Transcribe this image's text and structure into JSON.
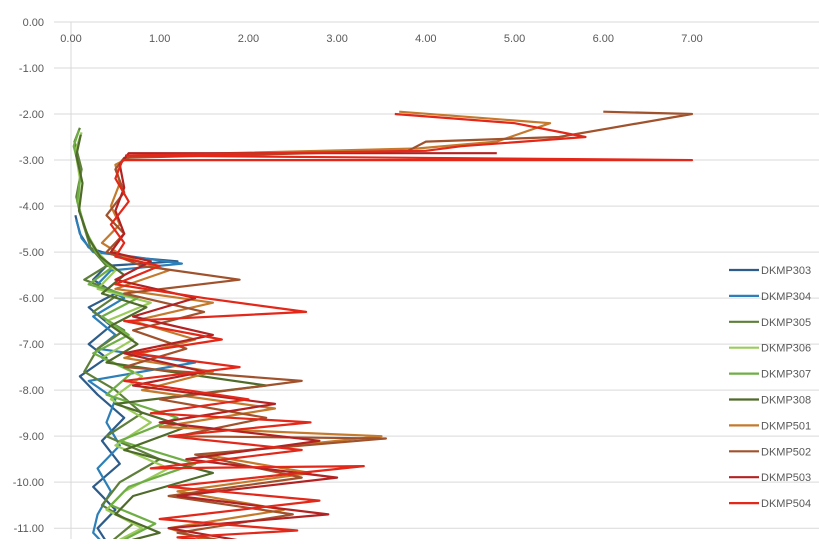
{
  "chart_data": {
    "type": "line",
    "title": "",
    "xlabel": "",
    "ylabel": "",
    "xlim": [
      0,
      7
    ],
    "ylim": [
      -11.3,
      0
    ],
    "x_ticks": [
      "0.00",
      "1.00",
      "2.00",
      "3.00",
      "4.00",
      "5.00",
      "6.00",
      "7.00"
    ],
    "y_ticks": [
      "0.00",
      "-1.00",
      "-2.00",
      "-3.00",
      "-4.00",
      "-5.00",
      "-6.00",
      "-7.00",
      "-8.00",
      "-9.00",
      "-10.00",
      "-11.00"
    ],
    "x_axis_position": "top",
    "gridlines": "horizontal",
    "legend_position": "right",
    "series": [
      {
        "name": "DKMP303",
        "color": "#2E5C8A",
        "points": [
          [
            0.05,
            -4.2
          ],
          [
            0.1,
            -4.6
          ],
          [
            0.2,
            -4.9
          ],
          [
            0.35,
            -5.0
          ],
          [
            0.6,
            -5.1
          ],
          [
            1.2,
            -5.2
          ],
          [
            0.4,
            -5.3
          ],
          [
            0.25,
            -5.6
          ],
          [
            0.5,
            -5.9
          ],
          [
            0.2,
            -6.2
          ],
          [
            0.45,
            -6.6
          ],
          [
            0.2,
            -7.0
          ],
          [
            0.4,
            -7.3
          ],
          [
            0.1,
            -7.7
          ],
          [
            0.3,
            -8.1
          ],
          [
            0.6,
            -8.6
          ],
          [
            0.35,
            -9.1
          ],
          [
            0.55,
            -9.6
          ],
          [
            0.25,
            -10.1
          ],
          [
            0.5,
            -10.6
          ],
          [
            0.3,
            -11.0
          ],
          [
            0.4,
            -11.3
          ]
        ]
      },
      {
        "name": "DKMP304",
        "color": "#2C7FB8",
        "points": [
          [
            0.06,
            -4.3
          ],
          [
            0.12,
            -4.7
          ],
          [
            0.25,
            -5.0
          ],
          [
            0.7,
            -5.1
          ],
          [
            1.25,
            -5.25
          ],
          [
            0.45,
            -5.4
          ],
          [
            0.3,
            -5.7
          ],
          [
            0.6,
            -6.0
          ],
          [
            0.25,
            -6.4
          ],
          [
            0.5,
            -6.8
          ],
          [
            0.3,
            -7.1
          ],
          [
            1.4,
            -7.4
          ],
          [
            0.2,
            -7.8
          ],
          [
            0.5,
            -8.2
          ],
          [
            0.4,
            -8.7
          ],
          [
            0.55,
            -9.2
          ],
          [
            0.3,
            -9.7
          ],
          [
            0.45,
            -10.2
          ],
          [
            0.3,
            -10.7
          ],
          [
            0.25,
            -11.1
          ],
          [
            0.35,
            -11.3
          ]
        ]
      },
      {
        "name": "DKMP305",
        "color": "#5E7F3A",
        "points": [
          [
            0.1,
            -2.3
          ],
          [
            0.04,
            -2.6
          ],
          [
            0.12,
            -3.2
          ],
          [
            0.06,
            -3.8
          ],
          [
            0.14,
            -4.4
          ],
          [
            0.22,
            -4.9
          ],
          [
            0.4,
            -5.3
          ],
          [
            0.15,
            -5.6
          ],
          [
            0.55,
            -5.9
          ],
          [
            0.25,
            -6.3
          ],
          [
            0.6,
            -6.7
          ],
          [
            0.3,
            -7.1
          ],
          [
            0.15,
            -7.6
          ],
          [
            0.5,
            -8.0
          ],
          [
            0.8,
            -8.5
          ],
          [
            0.4,
            -9.0
          ],
          [
            1.0,
            -9.5
          ],
          [
            0.55,
            -10.0
          ],
          [
            0.35,
            -10.5
          ],
          [
            0.7,
            -10.9
          ],
          [
            0.45,
            -11.3
          ]
        ]
      },
      {
        "name": "DKMP306",
        "color": "#9BCB5A",
        "points": [
          [
            0.12,
            -2.4
          ],
          [
            0.05,
            -2.8
          ],
          [
            0.1,
            -3.4
          ],
          [
            0.08,
            -4.0
          ],
          [
            0.18,
            -4.6
          ],
          [
            0.3,
            -5.0
          ],
          [
            0.5,
            -5.4
          ],
          [
            0.3,
            -5.8
          ],
          [
            0.9,
            -6.1
          ],
          [
            0.4,
            -6.5
          ],
          [
            0.7,
            -6.9
          ],
          [
            0.35,
            -7.3
          ],
          [
            0.8,
            -7.7
          ],
          [
            0.45,
            -8.2
          ],
          [
            0.9,
            -8.7
          ],
          [
            0.5,
            -9.2
          ],
          [
            1.1,
            -9.7
          ],
          [
            0.6,
            -10.2
          ],
          [
            0.4,
            -10.6
          ],
          [
            0.8,
            -11.0
          ],
          [
            0.5,
            -11.3
          ]
        ]
      },
      {
        "name": "DKMP307",
        "color": "#6FAE45",
        "points": [
          [
            0.09,
            -2.35
          ],
          [
            0.03,
            -2.7
          ],
          [
            0.11,
            -3.3
          ],
          [
            0.07,
            -3.9
          ],
          [
            0.16,
            -4.5
          ],
          [
            0.28,
            -5.0
          ],
          [
            0.45,
            -5.35
          ],
          [
            0.2,
            -5.7
          ],
          [
            0.75,
            -6.0
          ],
          [
            0.35,
            -6.4
          ],
          [
            0.65,
            -6.8
          ],
          [
            0.25,
            -7.2
          ],
          [
            0.7,
            -7.6
          ],
          [
            0.4,
            -8.1
          ],
          [
            1.2,
            -8.6
          ],
          [
            0.55,
            -9.1
          ],
          [
            1.4,
            -9.6
          ],
          [
            0.65,
            -10.1
          ],
          [
            0.45,
            -10.5
          ],
          [
            0.95,
            -10.9
          ],
          [
            0.55,
            -11.3
          ]
        ]
      },
      {
        "name": "DKMP308",
        "color": "#4F6B2A",
        "points": [
          [
            0.11,
            -2.45
          ],
          [
            0.06,
            -2.9
          ],
          [
            0.13,
            -3.5
          ],
          [
            0.09,
            -4.1
          ],
          [
            0.2,
            -4.7
          ],
          [
            0.33,
            -5.1
          ],
          [
            0.6,
            -5.5
          ],
          [
            0.35,
            -5.9
          ],
          [
            0.85,
            -6.2
          ],
          [
            0.45,
            -6.6
          ],
          [
            0.75,
            -7.0
          ],
          [
            0.4,
            -7.4
          ],
          [
            2.2,
            -7.9
          ],
          [
            0.5,
            -8.3
          ],
          [
            1.3,
            -8.8
          ],
          [
            0.6,
            -9.3
          ],
          [
            1.6,
            -9.8
          ],
          [
            0.7,
            -10.3
          ],
          [
            0.5,
            -10.7
          ],
          [
            1.0,
            -11.1
          ],
          [
            0.6,
            -11.3
          ]
        ]
      },
      {
        "name": "DKMP501",
        "color": "#C47A2C",
        "points": [
          [
            3.7,
            -1.95
          ],
          [
            5.4,
            -2.2
          ],
          [
            4.8,
            -2.6
          ],
          [
            3.9,
            -2.75
          ],
          [
            0.7,
            -2.9
          ],
          [
            0.5,
            -3.1
          ],
          [
            0.55,
            -3.5
          ],
          [
            0.45,
            -4.0
          ],
          [
            0.55,
            -4.4
          ],
          [
            0.35,
            -4.8
          ],
          [
            0.6,
            -5.1
          ],
          [
            1.1,
            -5.4
          ],
          [
            0.5,
            -5.8
          ],
          [
            1.6,
            -6.1
          ],
          [
            0.7,
            -6.5
          ],
          [
            1.4,
            -6.9
          ],
          [
            0.6,
            -7.3
          ],
          [
            1.6,
            -7.6
          ],
          [
            0.8,
            -8.0
          ],
          [
            2.3,
            -8.4
          ],
          [
            1.0,
            -8.8
          ],
          [
            3.5,
            -9.0
          ],
          [
            1.5,
            -9.4
          ],
          [
            2.7,
            -9.8
          ],
          [
            1.2,
            -10.2
          ],
          [
            2.4,
            -10.6
          ],
          [
            1.1,
            -11.0
          ],
          [
            1.6,
            -11.3
          ]
        ]
      },
      {
        "name": "DKMP502",
        "color": "#A0522D",
        "points": [
          [
            6.0,
            -1.95
          ],
          [
            7.0,
            -2.0
          ],
          [
            5.5,
            -2.5
          ],
          [
            4.0,
            -2.6
          ],
          [
            3.8,
            -2.8
          ],
          [
            0.6,
            -2.95
          ],
          [
            0.5,
            -3.2
          ],
          [
            0.6,
            -3.7
          ],
          [
            0.4,
            -4.2
          ],
          [
            0.6,
            -4.6
          ],
          [
            0.4,
            -5.0
          ],
          [
            0.8,
            -5.3
          ],
          [
            1.9,
            -5.6
          ],
          [
            0.6,
            -5.9
          ],
          [
            1.5,
            -6.3
          ],
          [
            0.7,
            -6.7
          ],
          [
            1.3,
            -7.1
          ],
          [
            0.6,
            -7.5
          ],
          [
            2.6,
            -7.8
          ],
          [
            1.0,
            -8.2
          ],
          [
            2.2,
            -8.6
          ],
          [
            1.2,
            -9.0
          ],
          [
            3.55,
            -9.05
          ],
          [
            1.4,
            -9.4
          ],
          [
            2.6,
            -9.9
          ],
          [
            1.1,
            -10.3
          ],
          [
            2.5,
            -10.7
          ],
          [
            1.2,
            -11.1
          ],
          [
            1.8,
            -11.3
          ]
        ]
      },
      {
        "name": "DKMP503",
        "color": "#B22222",
        "points": [
          [
            4.8,
            -2.85
          ],
          [
            0.65,
            -2.85
          ],
          [
            0.55,
            -3.1
          ],
          [
            0.6,
            -3.6
          ],
          [
            0.5,
            -4.1
          ],
          [
            0.6,
            -4.6
          ],
          [
            0.45,
            -5.0
          ],
          [
            0.9,
            -5.2
          ],
          [
            0.5,
            -5.6
          ],
          [
            1.4,
            -6.0
          ],
          [
            0.7,
            -6.4
          ],
          [
            1.6,
            -6.8
          ],
          [
            0.6,
            -7.2
          ],
          [
            1.5,
            -7.6
          ],
          [
            0.7,
            -7.9
          ],
          [
            2.3,
            -8.3
          ],
          [
            1.0,
            -8.7
          ],
          [
            2.8,
            -9.1
          ],
          [
            1.3,
            -9.5
          ],
          [
            3.0,
            -9.9
          ],
          [
            1.2,
            -10.3
          ],
          [
            2.9,
            -10.7
          ],
          [
            1.1,
            -11.0
          ],
          [
            2.0,
            -11.3
          ]
        ]
      },
      {
        "name": "DKMP504",
        "color": "#E32719",
        "points": [
          [
            3.65,
            -2.0
          ],
          [
            5.0,
            -2.2
          ],
          [
            5.8,
            -2.5
          ],
          [
            4.4,
            -2.7
          ],
          [
            4.0,
            -2.8
          ],
          [
            0.62,
            -2.9
          ],
          [
            7.0,
            -3.0
          ],
          [
            0.58,
            -3.0
          ],
          [
            0.5,
            -3.4
          ],
          [
            0.65,
            -3.9
          ],
          [
            0.45,
            -4.4
          ],
          [
            0.6,
            -4.8
          ],
          [
            0.5,
            -5.1
          ],
          [
            1.0,
            -5.3
          ],
          [
            0.5,
            -5.7
          ],
          [
            1.5,
            -6.0
          ],
          [
            2.65,
            -6.3
          ],
          [
            0.6,
            -6.5
          ],
          [
            1.7,
            -6.9
          ],
          [
            0.7,
            -7.2
          ],
          [
            1.9,
            -7.5
          ],
          [
            0.6,
            -7.8
          ],
          [
            2.0,
            -8.2
          ],
          [
            0.9,
            -8.5
          ],
          [
            2.7,
            -8.7
          ],
          [
            1.1,
            -9.0
          ],
          [
            2.6,
            -9.3
          ],
          [
            0.9,
            -9.7
          ],
          [
            3.3,
            -9.65
          ],
          [
            1.1,
            -10.1
          ],
          [
            2.8,
            -10.4
          ],
          [
            1.0,
            -10.8
          ],
          [
            2.55,
            -11.05
          ],
          [
            1.2,
            -11.2
          ],
          [
            1.7,
            -11.3
          ]
        ]
      }
    ]
  }
}
